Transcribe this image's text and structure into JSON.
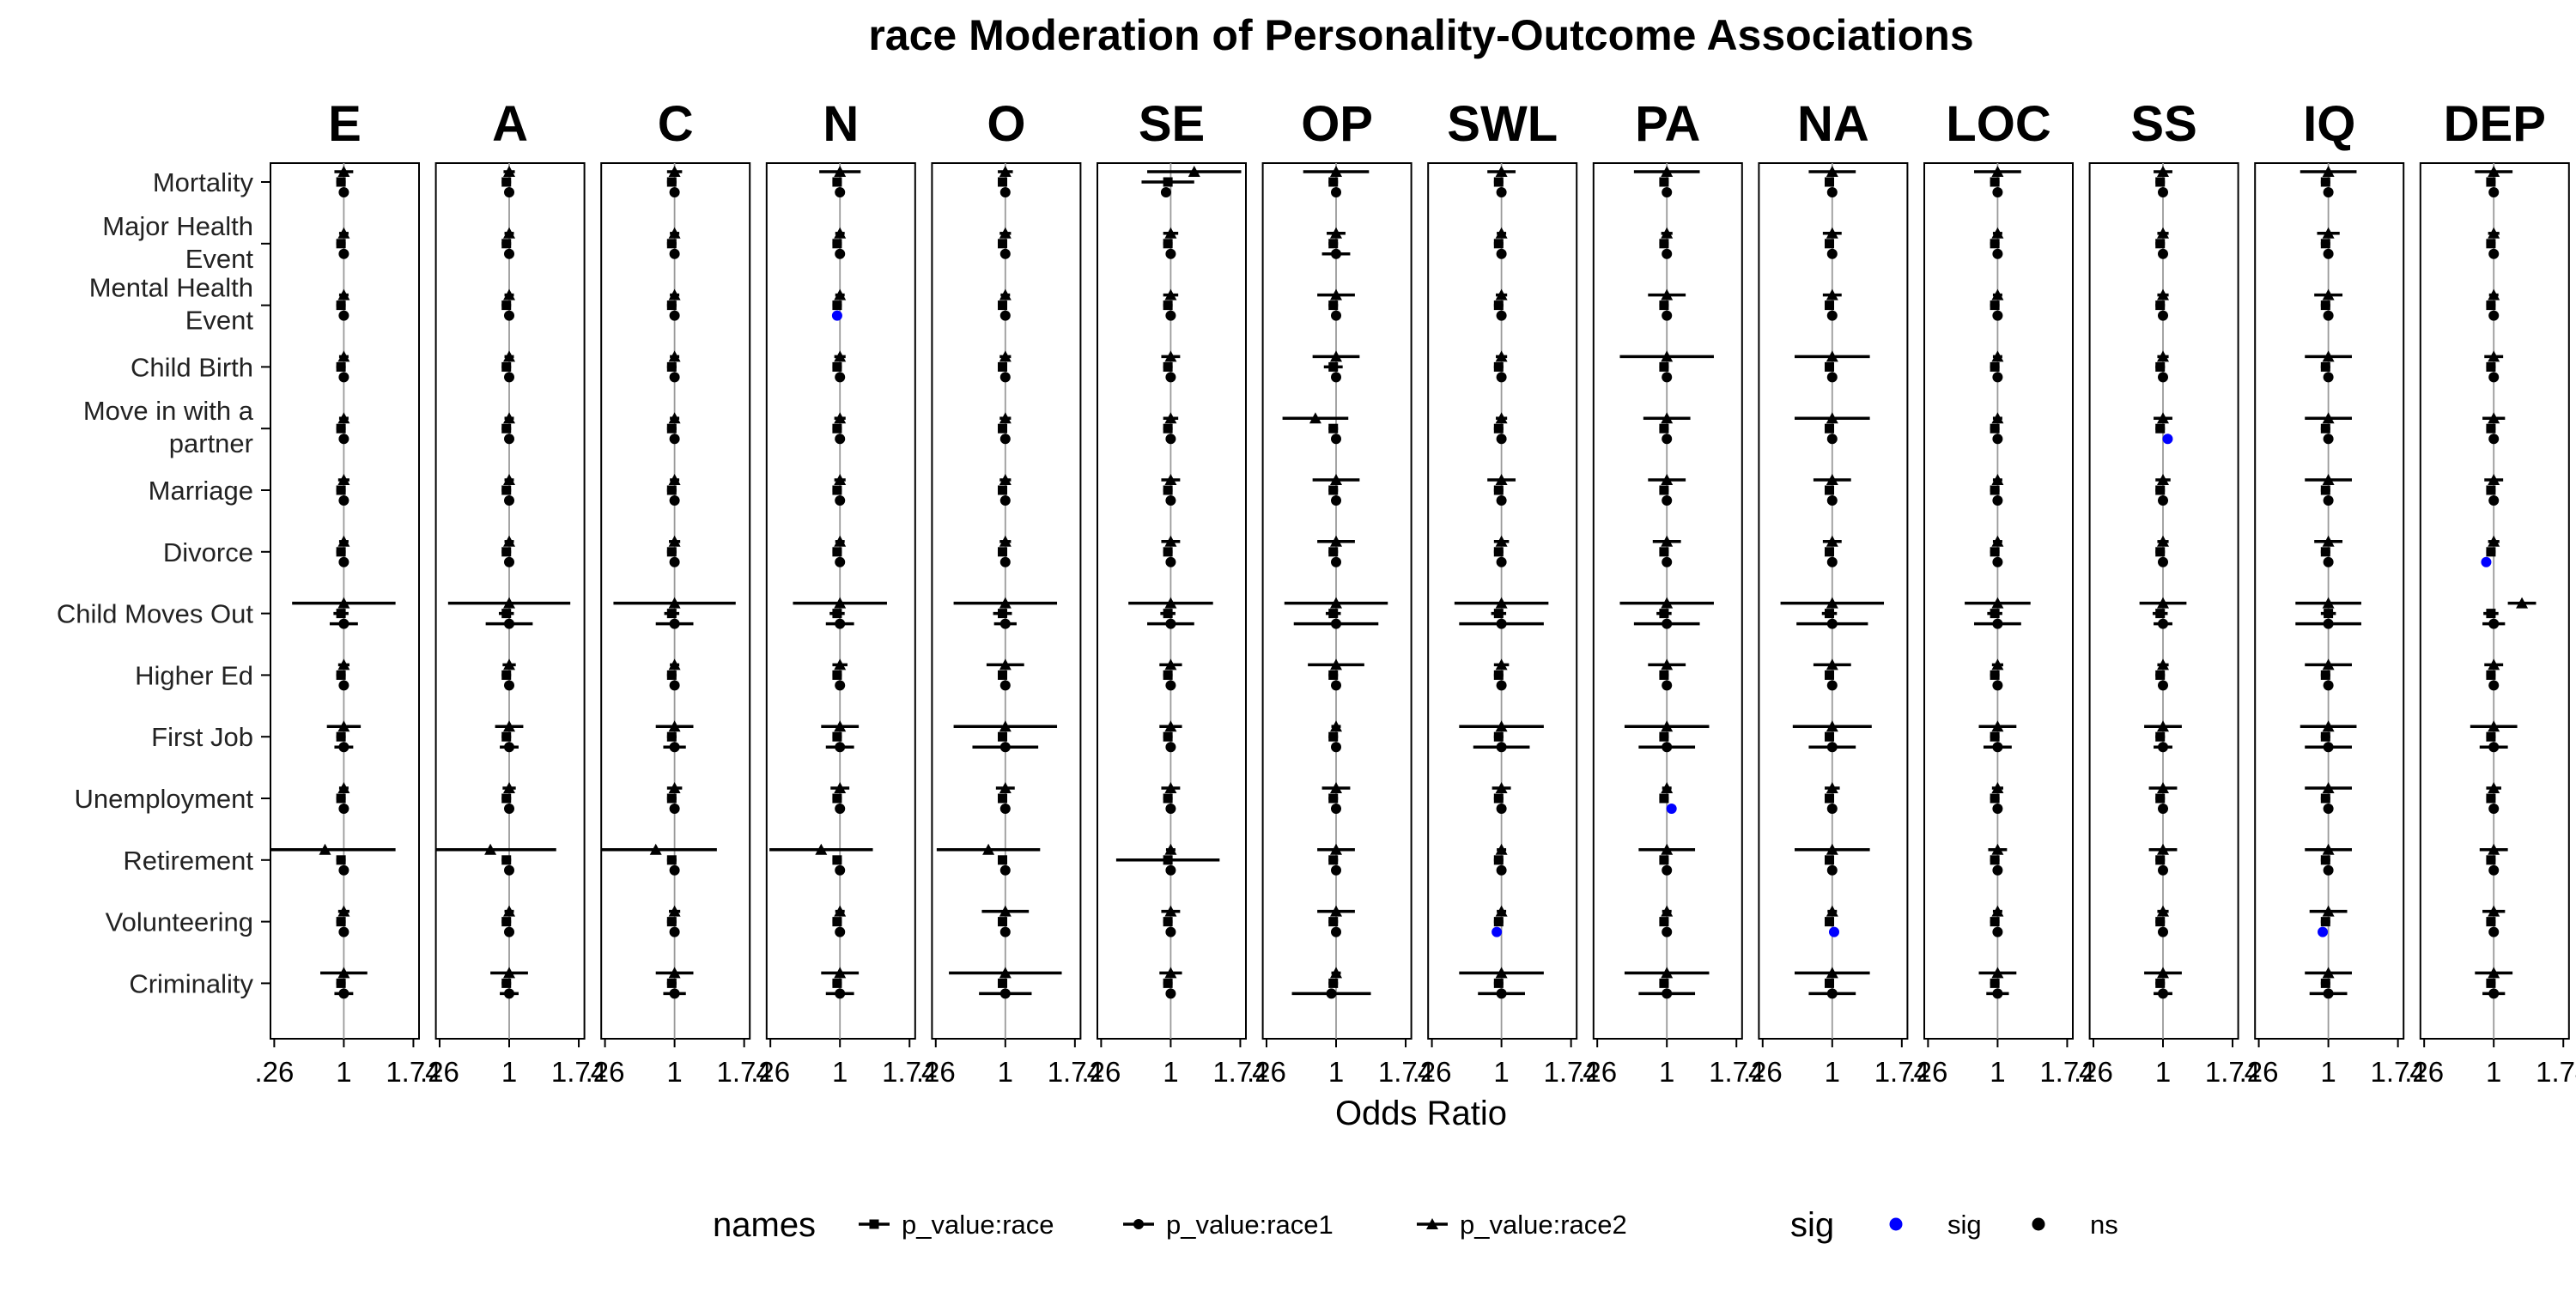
{
  "colors": {
    "sig": "#0000ff",
    "ns": "#000000",
    "refline": "#9a9a9a",
    "axis": "#000000"
  },
  "chart_data": {
    "type": "forest",
    "title": "race Moderation of Personality-Outcome Associations",
    "xlabel": "Odds Ratio",
    "x_tick_labels": [
      ".26",
      "1",
      "1.74"
    ],
    "x_ticks": [
      0.26,
      1,
      1.74
    ],
    "xlim": [
      0.22,
      1.8
    ],
    "reference_line": 1,
    "panels": [
      "E",
      "A",
      "C",
      "N",
      "O",
      "SE",
      "OP",
      "SWL",
      "PA",
      "NA",
      "LOC",
      "SS",
      "IQ",
      "DEP"
    ],
    "outcomes": [
      "Mortality",
      "Major Health\nEvent",
      "Mental Health\nEvent",
      "Child Birth",
      "Move in with a\npartner",
      "Marriage",
      "Divorce",
      "Child Moves Out",
      "Higher Ed",
      "First Job",
      "Unemployment",
      "Retirement",
      "Volunteering",
      "Criminality"
    ],
    "terms": [
      "p_value:race2",
      "p_value:race",
      "p_value:race1"
    ],
    "legend": {
      "names_title": "names",
      "names": [
        {
          "label": "p_value:race",
          "shape": "square"
        },
        {
          "label": "p_value:race1",
          "shape": "circle"
        },
        {
          "label": "p_value:race2",
          "shape": "triangle"
        }
      ],
      "sig_title": "sig",
      "sig": [
        {
          "label": "sig",
          "color": "#0000ff"
        },
        {
          "label": "ns",
          "color": "#000000"
        }
      ],
      "position": "bottom"
    },
    "default_estimate": [
      1.0,
      0.97,
      1.0
    ],
    "ci_half_width": {
      "E": [
        [
          0.1,
          0.05,
          0.05
        ],
        [
          0.05,
          0.05,
          0.05
        ],
        [
          0.05,
          0.05,
          0.05
        ],
        [
          0.05,
          0.05,
          0.05
        ],
        [
          0.05,
          0.05,
          0.05
        ],
        [
          0.06,
          0.05,
          0.05
        ],
        [
          0.05,
          0.05,
          0.05
        ],
        [
          0.55,
          0.08,
          0.15
        ],
        [
          0.06,
          0.05,
          0.05
        ],
        [
          0.18,
          0.05,
          0.1
        ],
        [
          0.05,
          0.05,
          0.05
        ],
        [
          0.75,
          0.05,
          0.05
        ],
        [
          0.06,
          0.05,
          0.05
        ],
        [
          0.25,
          0.05,
          0.1
        ]
      ],
      "A": [
        [
          0.06,
          0.05,
          0.05
        ],
        [
          0.05,
          0.05,
          0.05
        ],
        [
          0.05,
          0.05,
          0.05
        ],
        [
          0.05,
          0.05,
          0.05
        ],
        [
          0.05,
          0.05,
          0.05
        ],
        [
          0.05,
          0.05,
          0.05
        ],
        [
          0.05,
          0.05,
          0.05
        ],
        [
          0.65,
          0.08,
          0.25
        ],
        [
          0.07,
          0.05,
          0.05
        ],
        [
          0.15,
          0.05,
          0.1
        ],
        [
          0.07,
          0.05,
          0.05
        ],
        [
          0.7,
          0.05,
          0.05
        ],
        [
          0.05,
          0.05,
          0.05
        ],
        [
          0.2,
          0.05,
          0.1
        ]
      ],
      "C": [
        [
          0.08,
          0.05,
          0.05
        ],
        [
          0.05,
          0.05,
          0.05
        ],
        [
          0.05,
          0.05,
          0.05
        ],
        [
          0.05,
          0.05,
          0.05
        ],
        [
          0.05,
          0.05,
          0.05
        ],
        [
          0.05,
          0.05,
          0.05
        ],
        [
          0.06,
          0.05,
          0.05
        ],
        [
          0.65,
          0.08,
          0.2
        ],
        [
          0.05,
          0.05,
          0.05
        ],
        [
          0.2,
          0.05,
          0.12
        ],
        [
          0.08,
          0.05,
          0.05
        ],
        [
          0.65,
          0.05,
          0.05
        ],
        [
          0.06,
          0.05,
          0.05
        ],
        [
          0.2,
          0.05,
          0.12
        ]
      ],
      "N": [
        [
          0.22,
          0.05,
          0.05
        ],
        [
          0.05,
          0.05,
          0.05
        ],
        [
          0.05,
          0.05,
          0.05
        ],
        [
          0.06,
          0.05,
          0.05
        ],
        [
          0.06,
          0.05,
          0.05
        ],
        [
          0.06,
          0.05,
          0.05
        ],
        [
          0.05,
          0.05,
          0.05
        ],
        [
          0.5,
          0.08,
          0.15
        ],
        [
          0.08,
          0.05,
          0.05
        ],
        [
          0.2,
          0.05,
          0.15
        ],
        [
          0.1,
          0.05,
          0.05
        ],
        [
          0.55,
          0.05,
          0.05
        ],
        [
          0.05,
          0.05,
          0.05
        ],
        [
          0.2,
          0.05,
          0.15
        ]
      ],
      "O": [
        [
          0.08,
          0.05,
          0.05
        ],
        [
          0.06,
          0.05,
          0.05
        ],
        [
          0.05,
          0.05,
          0.05
        ],
        [
          0.06,
          0.05,
          0.05
        ],
        [
          0.06,
          0.05,
          0.05
        ],
        [
          0.06,
          0.05,
          0.05
        ],
        [
          0.06,
          0.05,
          0.05
        ],
        [
          0.55,
          0.1,
          0.12
        ],
        [
          0.2,
          0.05,
          0.05
        ],
        [
          0.55,
          0.05,
          0.35
        ],
        [
          0.1,
          0.05,
          0.05
        ],
        [
          0.55,
          0.05,
          0.05
        ],
        [
          0.25,
          0.05,
          0.05
        ],
        [
          0.6,
          0.05,
          0.28
        ]
      ],
      "SE": [
        [
          0.5,
          0.28,
          0.05
        ],
        [
          0.08,
          0.05,
          0.05
        ],
        [
          0.08,
          0.05,
          0.05
        ],
        [
          0.1,
          0.05,
          0.05
        ],
        [
          0.08,
          0.05,
          0.05
        ],
        [
          0.1,
          0.05,
          0.05
        ],
        [
          0.1,
          0.05,
          0.05
        ],
        [
          0.45,
          0.08,
          0.25
        ],
        [
          0.12,
          0.05,
          0.05
        ],
        [
          0.12,
          0.05,
          0.05
        ],
        [
          0.1,
          0.05,
          0.05
        ],
        [
          0.05,
          0.55,
          0.05
        ],
        [
          0.1,
          0.05,
          0.05
        ],
        [
          0.12,
          0.05,
          0.05
        ]
      ],
      "OP": [
        [
          0.35,
          0.05,
          0.05
        ],
        [
          0.1,
          0.05,
          0.15
        ],
        [
          0.2,
          0.05,
          0.05
        ],
        [
          0.25,
          0.1,
          0.05
        ],
        [
          0.35,
          0.05,
          0.05
        ],
        [
          0.25,
          0.05,
          0.05
        ],
        [
          0.2,
          0.05,
          0.05
        ],
        [
          0.55,
          0.08,
          0.45
        ],
        [
          0.3,
          0.05,
          0.05
        ],
        [
          0.05,
          0.05,
          0.05
        ],
        [
          0.15,
          0.05,
          0.05
        ],
        [
          0.2,
          0.05,
          0.05
        ],
        [
          0.2,
          0.05,
          0.05
        ],
        [
          0.05,
          0.05,
          0.42
        ]
      ],
      "SWL": [
        [
          0.15,
          0.05,
          0.05
        ],
        [
          0.05,
          0.05,
          0.05
        ],
        [
          0.06,
          0.05,
          0.05
        ],
        [
          0.06,
          0.05,
          0.05
        ],
        [
          0.06,
          0.05,
          0.05
        ],
        [
          0.15,
          0.05,
          0.05
        ],
        [
          0.08,
          0.05,
          0.05
        ],
        [
          0.5,
          0.08,
          0.45
        ],
        [
          0.08,
          0.05,
          0.05
        ],
        [
          0.45,
          0.05,
          0.3
        ],
        [
          0.1,
          0.05,
          0.05
        ],
        [
          0.05,
          0.05,
          0.05
        ],
        [
          0.05,
          0.05,
          0.05
        ],
        [
          0.45,
          0.05,
          0.25
        ]
      ],
      "PA": [
        [
          0.35,
          0.05,
          0.05
        ],
        [
          0.06,
          0.05,
          0.05
        ],
        [
          0.2,
          0.05,
          0.05
        ],
        [
          0.5,
          0.05,
          0.05
        ],
        [
          0.25,
          0.05,
          0.05
        ],
        [
          0.2,
          0.05,
          0.05
        ],
        [
          0.15,
          0.05,
          0.05
        ],
        [
          0.5,
          0.08,
          0.35
        ],
        [
          0.2,
          0.05,
          0.05
        ],
        [
          0.45,
          0.05,
          0.3
        ],
        [
          0.05,
          0.05,
          0.05
        ],
        [
          0.3,
          0.05,
          0.05
        ],
        [
          0.05,
          0.05,
          0.05
        ],
        [
          0.45,
          0.05,
          0.3
        ]
      ],
      "NA": [
        [
          0.25,
          0.05,
          0.05
        ],
        [
          0.1,
          0.05,
          0.05
        ],
        [
          0.1,
          0.05,
          0.05
        ],
        [
          0.4,
          0.05,
          0.05
        ],
        [
          0.4,
          0.05,
          0.05
        ],
        [
          0.2,
          0.05,
          0.05
        ],
        [
          0.1,
          0.05,
          0.05
        ],
        [
          0.55,
          0.08,
          0.38
        ],
        [
          0.2,
          0.05,
          0.05
        ],
        [
          0.42,
          0.05,
          0.25
        ],
        [
          0.08,
          0.05,
          0.05
        ],
        [
          0.4,
          0.05,
          0.05
        ],
        [
          0.05,
          0.05,
          0.05
        ],
        [
          0.4,
          0.05,
          0.25
        ]
      ],
      "LOC": [
        [
          0.25,
          0.05,
          0.05
        ],
        [
          0.05,
          0.05,
          0.05
        ],
        [
          0.05,
          0.05,
          0.05
        ],
        [
          0.05,
          0.05,
          0.05
        ],
        [
          0.05,
          0.05,
          0.05
        ],
        [
          0.05,
          0.05,
          0.05
        ],
        [
          0.05,
          0.05,
          0.05
        ],
        [
          0.35,
          0.08,
          0.25
        ],
        [
          0.06,
          0.05,
          0.05
        ],
        [
          0.2,
          0.05,
          0.15
        ],
        [
          0.06,
          0.05,
          0.05
        ],
        [
          0.1,
          0.05,
          0.05
        ],
        [
          0.05,
          0.05,
          0.05
        ],
        [
          0.2,
          0.05,
          0.12
        ]
      ],
      "SS": [
        [
          0.1,
          0.05,
          0.05
        ],
        [
          0.06,
          0.05,
          0.05
        ],
        [
          0.06,
          0.05,
          0.05
        ],
        [
          0.06,
          0.05,
          0.05
        ],
        [
          0.1,
          0.05,
          0.05
        ],
        [
          0.08,
          0.05,
          0.05
        ],
        [
          0.06,
          0.05,
          0.05
        ],
        [
          0.25,
          0.08,
          0.1
        ],
        [
          0.06,
          0.05,
          0.05
        ],
        [
          0.2,
          0.05,
          0.1
        ],
        [
          0.15,
          0.05,
          0.05
        ],
        [
          0.15,
          0.05,
          0.05
        ],
        [
          0.06,
          0.05,
          0.05
        ],
        [
          0.2,
          0.05,
          0.1
        ]
      ],
      "IQ": [
        [
          0.3,
          0.05,
          0.05
        ],
        [
          0.12,
          0.05,
          0.05
        ],
        [
          0.15,
          0.05,
          0.05
        ],
        [
          0.25,
          0.05,
          0.05
        ],
        [
          0.25,
          0.05,
          0.05
        ],
        [
          0.25,
          0.05,
          0.05
        ],
        [
          0.15,
          0.05,
          0.05
        ],
        [
          0.35,
          0.08,
          0.35
        ],
        [
          0.25,
          0.05,
          0.05
        ],
        [
          0.3,
          0.05,
          0.25
        ],
        [
          0.25,
          0.05,
          0.05
        ],
        [
          0.25,
          0.05,
          0.05
        ],
        [
          0.2,
          0.05,
          0.05
        ],
        [
          0.25,
          0.05,
          0.2
        ]
      ],
      "DEP": [
        [
          0.2,
          0.05,
          0.05
        ],
        [
          0.06,
          0.05,
          0.05
        ],
        [
          0.05,
          0.05,
          0.05
        ],
        [
          0.1,
          0.05,
          0.05
        ],
        [
          0.12,
          0.05,
          0.05
        ],
        [
          0.1,
          0.05,
          0.05
        ],
        [
          0.06,
          0.05,
          0.05
        ],
        [
          0.15,
          0.08,
          0.12
        ],
        [
          0.1,
          0.05,
          0.05
        ],
        [
          0.25,
          0.05,
          0.15
        ],
        [
          0.08,
          0.05,
          0.05
        ],
        [
          0.15,
          0.05,
          0.05
        ],
        [
          0.12,
          0.05,
          0.05
        ],
        [
          0.2,
          0.05,
          0.12
        ]
      ]
    },
    "estimate_overrides": [
      {
        "panel": "N",
        "outcome": 2,
        "term": 2,
        "value": 0.97,
        "sig": true
      },
      {
        "panel": "SS",
        "outcome": 4,
        "term": 2,
        "value": 1.05,
        "sig": true
      },
      {
        "panel": "DEP",
        "outcome": 6,
        "term": 2,
        "value": 0.92,
        "sig": true
      },
      {
        "panel": "PA",
        "outcome": 10,
        "term": 2,
        "value": 1.05,
        "sig": true
      },
      {
        "panel": "SWL",
        "outcome": 12,
        "term": 2,
        "value": 0.95,
        "sig": true
      },
      {
        "panel": "NA",
        "outcome": 12,
        "term": 2,
        "value": 1.02,
        "sig": true
      },
      {
        "panel": "IQ",
        "outcome": 12,
        "term": 2,
        "value": 0.94,
        "sig": true
      },
      {
        "panel": "SE",
        "outcome": 0,
        "term": 0,
        "value": 1.25
      },
      {
        "panel": "SE",
        "outcome": 0,
        "term": 2,
        "value": 0.95
      },
      {
        "panel": "E",
        "outcome": 11,
        "term": 0,
        "value": 0.8
      },
      {
        "panel": "A",
        "outcome": 11,
        "term": 0,
        "value": 0.8
      },
      {
        "panel": "C",
        "outcome": 11,
        "term": 0,
        "value": 0.8
      },
      {
        "panel": "N",
        "outcome": 11,
        "term": 0,
        "value": 0.8
      },
      {
        "panel": "O",
        "outcome": 11,
        "term": 0,
        "value": 0.82
      },
      {
        "panel": "OP",
        "outcome": 4,
        "term": 0,
        "value": 0.78
      },
      {
        "panel": "OP",
        "outcome": 13,
        "term": 2,
        "value": 0.95
      },
      {
        "panel": "IQ",
        "outcome": 7,
        "term": 1,
        "value": 1.0
      },
      {
        "panel": "DEP",
        "outcome": 7,
        "term": 0,
        "value": 1.3
      }
    ]
  }
}
